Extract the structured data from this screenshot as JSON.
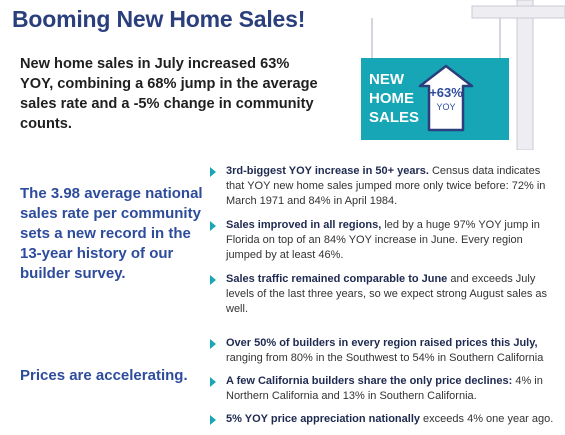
{
  "title": "Booming New Home Sales!",
  "intro": "New home sales in July increased 63% YOY, combining a 68% jump in the average sales rate and a -5% change in community counts.",
  "sign": {
    "line1": "NEW",
    "line2": "HOME",
    "line3": "SALES",
    "pct": "+63%",
    "yoy": "YOY",
    "colors": {
      "panel": "#17a6b6",
      "arrow_outline": "#2a3f7c",
      "post": "#f1f1f3"
    }
  },
  "sections": [
    {
      "side_text": "The 3.98 average national sales rate per community sets a new record in the 13-year history of our builder survey.",
      "bullets": [
        {
          "bold": "3rd-biggest YOY increase in 50+ years.",
          "rest": " Census data indicates that YOY new home sales jumped more only twice before: 72% in March 1971 and 84% in April 1984."
        },
        {
          "bold": "Sales improved in all regions,",
          "rest": " led by a huge 97% YOY jump in Florida on top of an 84% YOY increase in June. Every region jumped by at least 46%."
        },
        {
          "bold": "Sales traffic remained comparable to June",
          "rest": " and exceeds July levels of the last three years, so we expect strong August sales as well."
        }
      ]
    },
    {
      "side_text": "Prices are accelerating.",
      "bullets": [
        {
          "bold": "Over 50% of builders in every region raised prices this July,",
          "rest": " ranging from 80% in the Southwest to 54% in Southern California"
        },
        {
          "bold": "A few California builders share the only price declines:",
          "rest": " 4% in Northern California and 13% in Southern California."
        },
        {
          "bold": "5% YOY price appreciation nationally",
          "rest": " exceeds 4% one year ago."
        }
      ]
    }
  ],
  "colors": {
    "title": "#2a3f7c",
    "side_text": "#2e4c9c",
    "bullet_arrow": "#1aa6b7"
  }
}
